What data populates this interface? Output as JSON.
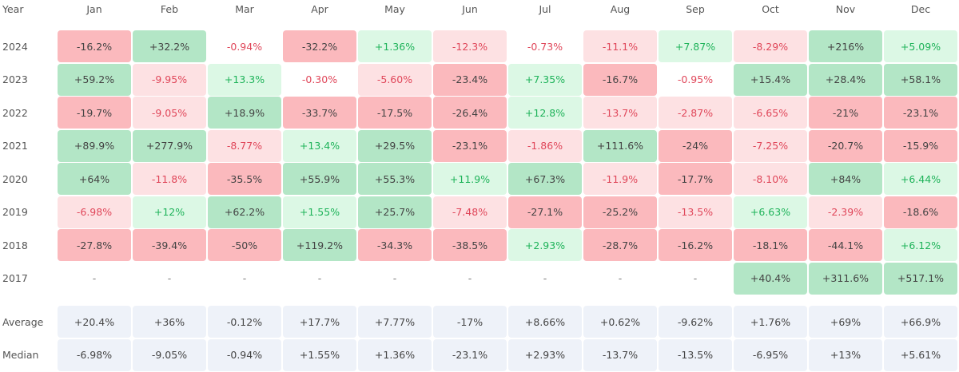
{
  "header": {
    "year": "Year",
    "months": [
      "Jan",
      "Feb",
      "Mar",
      "Apr",
      "May",
      "Jun",
      "Jul",
      "Aug",
      "Sep",
      "Oct",
      "Nov",
      "Dec"
    ]
  },
  "rows": [
    {
      "year": "2024",
      "cells": [
        "-16.2%",
        "+32.2%",
        "-0.94%",
        "-32.2%",
        "+1.36%",
        "-12.3%",
        "-0.73%",
        "-11.1%",
        "+7.87%",
        "-8.29%",
        "+216%",
        "+5.09%"
      ]
    },
    {
      "year": "2023",
      "cells": [
        "+59.2%",
        "-9.95%",
        "+13.3%",
        "-0.30%",
        "-5.60%",
        "-23.4%",
        "+7.35%",
        "-16.7%",
        "-0.95%",
        "+15.4%",
        "+28.4%",
        "+58.1%"
      ]
    },
    {
      "year": "2022",
      "cells": [
        "-19.7%",
        "-9.05%",
        "+18.9%",
        "-33.7%",
        "-17.5%",
        "-26.4%",
        "+12.8%",
        "-13.7%",
        "-2.87%",
        "-6.65%",
        "-21%",
        "-23.1%"
      ]
    },
    {
      "year": "2021",
      "cells": [
        "+89.9%",
        "+277.9%",
        "-8.77%",
        "+13.4%",
        "+29.5%",
        "-23.1%",
        "-1.86%",
        "+111.6%",
        "-24%",
        "-7.25%",
        "-20.7%",
        "-15.9%"
      ]
    },
    {
      "year": "2020",
      "cells": [
        "+64%",
        "-11.8%",
        "-35.5%",
        "+55.9%",
        "+55.3%",
        "+11.9%",
        "+67.3%",
        "-11.9%",
        "-17.7%",
        "-8.10%",
        "+84%",
        "+6.44%"
      ]
    },
    {
      "year": "2019",
      "cells": [
        "-6.98%",
        "+12%",
        "+62.2%",
        "+1.55%",
        "+25.7%",
        "-7.48%",
        "-27.1%",
        "-25.2%",
        "-13.5%",
        "+6.63%",
        "-2.39%",
        "-18.6%"
      ]
    },
    {
      "year": "2018",
      "cells": [
        "-27.8%",
        "-39.4%",
        "-50%",
        "+119.2%",
        "-34.3%",
        "-38.5%",
        "+2.93%",
        "-28.7%",
        "-16.2%",
        "-18.1%",
        "-44.1%",
        "+6.12%"
      ]
    },
    {
      "year": "2017",
      "cells": [
        "-",
        "-",
        "-",
        "-",
        "-",
        "-",
        "-",
        "-",
        "-",
        "+40.4%",
        "+311.6%",
        "+517.1%"
      ]
    }
  ],
  "summary": [
    {
      "label": "Average",
      "cells": [
        "+20.4%",
        "+36%",
        "-0.12%",
        "+17.7%",
        "+7.77%",
        "-17%",
        "+8.66%",
        "+0.62%",
        "-9.62%",
        "+1.76%",
        "+69%",
        "+66.9%"
      ]
    },
    {
      "label": "Median",
      "cells": [
        "-6.98%",
        "-9.05%",
        "-0.94%",
        "+1.55%",
        "+1.36%",
        "-23.1%",
        "+2.93%",
        "-13.7%",
        "-13.5%",
        "-6.95%",
        "+13%",
        "+5.61%"
      ]
    }
  ]
}
